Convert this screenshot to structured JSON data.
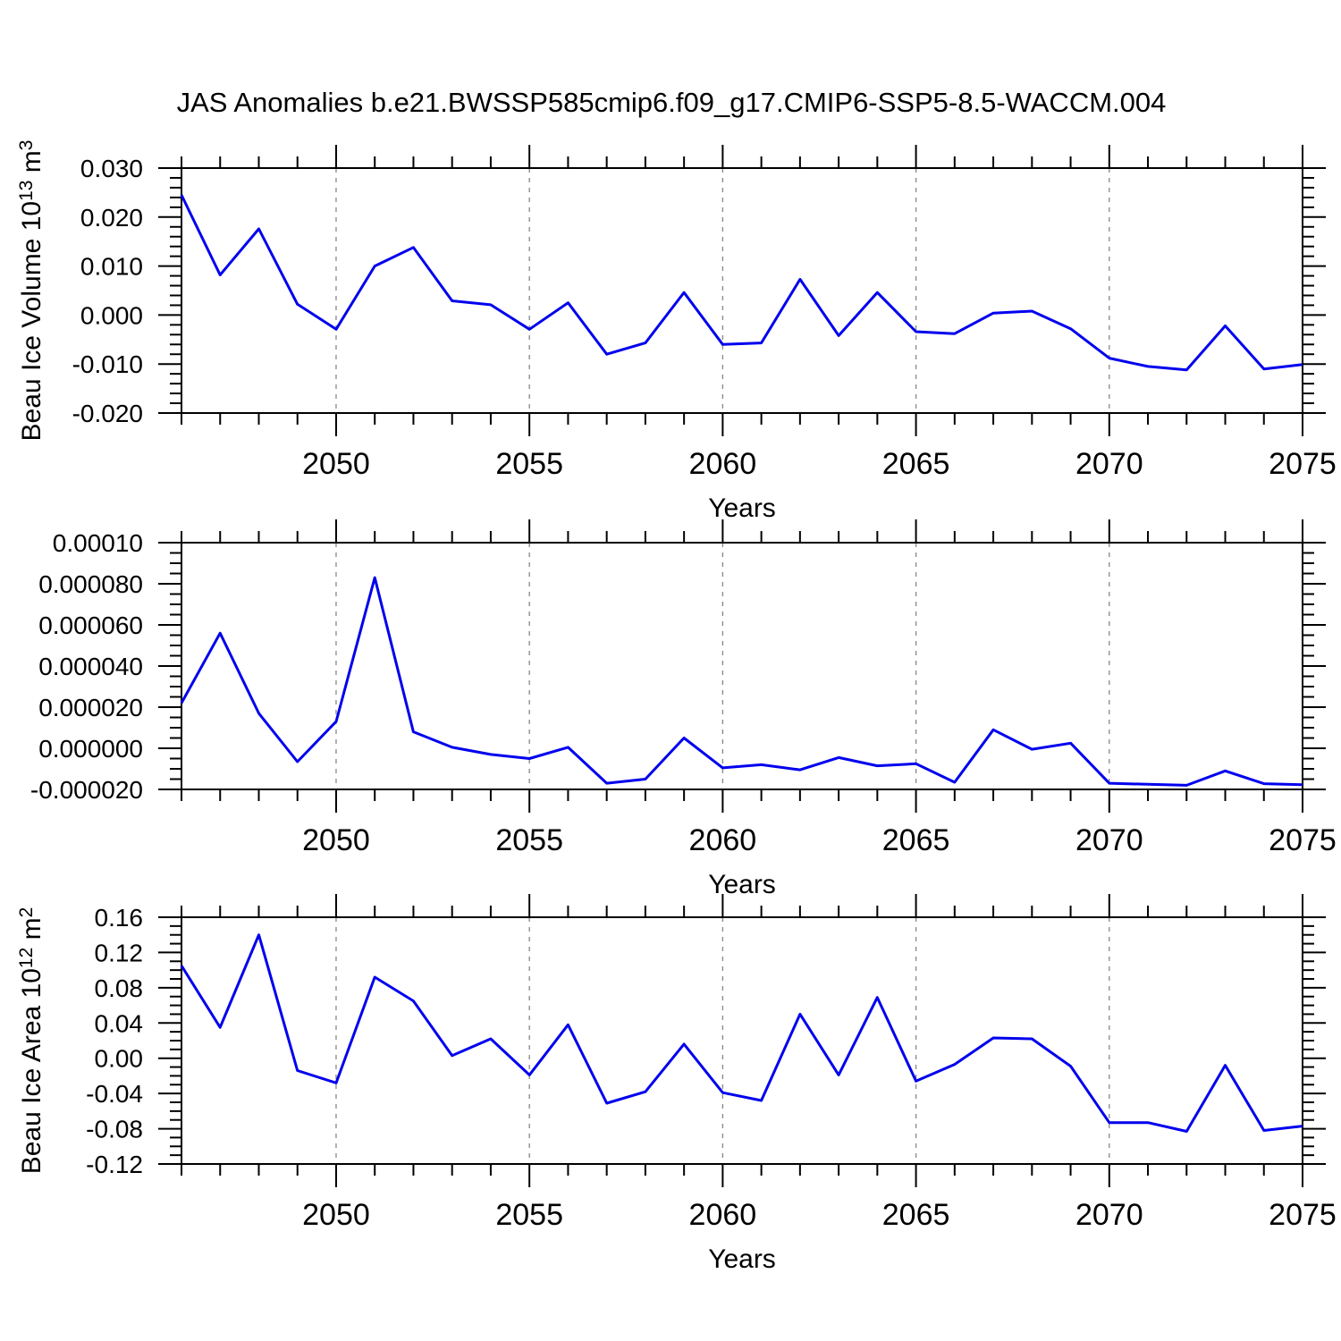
{
  "title": "JAS Anomalies b.e21.BWSSP585cmip6.f09_g17.CMIP6-SSP5-8.5-WACCM.004",
  "colors": {
    "line": "#0000ee",
    "axis": "#000000",
    "grid": "#878787",
    "background": "#ffffff",
    "text": "#000000"
  },
  "x_axis": {
    "label": "Years",
    "years_start": 2046,
    "years_end": 2075,
    "years": [
      2046,
      2047,
      2048,
      2049,
      2050,
      2051,
      2052,
      2053,
      2054,
      2055,
      2056,
      2057,
      2058,
      2059,
      2060,
      2061,
      2062,
      2063,
      2064,
      2065,
      2066,
      2067,
      2068,
      2069,
      2070,
      2071,
      2072,
      2073,
      2074,
      2075
    ],
    "major_ticks": [
      2050,
      2055,
      2060,
      2065,
      2070,
      2075
    ],
    "tick_labels": [
      "2050",
      "2055",
      "2060",
      "2065",
      "2070",
      "2075"
    ],
    "gridlines": [
      2050,
      2055,
      2060,
      2065,
      2070
    ]
  },
  "chart_data": [
    {
      "type": "line",
      "name": "beau-ice-volume",
      "ylabel_text": "Beau Ice Volume 10^13 m^3",
      "ylabel_parts": [
        {
          "t": "Beau Ice Volume 10"
        },
        {
          "t": "13",
          "sup": true
        },
        {
          "t": " m"
        },
        {
          "t": "3",
          "sup": true
        }
      ],
      "xlabel": "Years",
      "ylim": [
        -0.02,
        0.03
      ],
      "yticks": [
        0.03,
        0.02,
        0.01,
        0.0,
        -0.01,
        -0.02
      ],
      "ytick_labels": [
        "0.030",
        "0.020",
        "0.010",
        "0.000",
        "-0.010",
        "-0.020"
      ],
      "yminor_step": 0.002,
      "x_range": [
        2046,
        2075
      ],
      "values": [
        0.0245,
        0.0082,
        0.0176,
        0.0022,
        -0.0029,
        0.01,
        0.0138,
        0.0029,
        0.0021,
        -0.0029,
        0.0025,
        -0.008,
        -0.0057,
        0.0046,
        -0.006,
        -0.0057,
        0.0073,
        -0.0042,
        0.0046,
        -0.0034,
        -0.0038,
        0.0004,
        0.0008,
        -0.0028,
        -0.0088,
        -0.0105,
        -0.0112,
        -0.0022,
        -0.011,
        -0.0101
      ]
    },
    {
      "type": "line",
      "name": "middle-series",
      "ylabel_text": "",
      "ylabel_parts": [],
      "xlabel": "Years",
      "ylim": [
        -2e-05,
        0.0001
      ],
      "yticks": [
        0.0001,
        8e-05,
        6e-05,
        4e-05,
        2e-05,
        0.0,
        -2e-05
      ],
      "ytick_labels": [
        "0.00010",
        "0.000080",
        "0.000060",
        "0.000040",
        "0.000020",
        "0.000000",
        "-0.000020"
      ],
      "yminor_step": 5e-06,
      "x_range": [
        2046,
        2075
      ],
      "values": [
        2.2e-05,
        5.6e-05,
        1.7e-05,
        -6.5e-06,
        1.3e-05,
        8.3e-05,
        8e-06,
        5e-07,
        -3e-06,
        -5e-06,
        5e-07,
        -1.7e-05,
        -1.5e-05,
        5e-06,
        -9.5e-06,
        -8e-06,
        -1.05e-05,
        -4.5e-06,
        -8.5e-06,
        -7.5e-06,
        -1.65e-05,
        9e-06,
        -5e-07,
        2.5e-06,
        -1.7e-05,
        -1.75e-05,
        -1.8e-05,
        -1.1e-05,
        -1.72e-05,
        -1.77e-05
      ]
    },
    {
      "type": "line",
      "name": "beau-ice-area",
      "ylabel_text": "Beau Ice Area 10^12 m^2",
      "ylabel_parts": [
        {
          "t": "Beau Ice Area 10"
        },
        {
          "t": "12",
          "sup": true
        },
        {
          "t": " m"
        },
        {
          "t": "2",
          "sup": true
        }
      ],
      "xlabel": "Years",
      "ylim": [
        -0.12,
        0.16
      ],
      "yticks": [
        0.16,
        0.12,
        0.08,
        0.04,
        0.0,
        -0.04,
        -0.08,
        -0.12
      ],
      "ytick_labels": [
        "0.16",
        "0.12",
        "0.08",
        "0.04",
        "0.00",
        "-0.04",
        "-0.08",
        "-0.12"
      ],
      "yminor_step": 0.01,
      "x_range": [
        2046,
        2075
      ],
      "values": [
        0.105,
        0.035,
        0.14,
        -0.014,
        -0.028,
        0.092,
        0.065,
        0.003,
        0.022,
        -0.019,
        0.038,
        -0.051,
        -0.038,
        0.016,
        -0.039,
        -0.048,
        0.05,
        -0.019,
        0.069,
        -0.026,
        -0.007,
        0.023,
        0.022,
        -0.009,
        -0.073,
        -0.073,
        -0.083,
        -0.008,
        -0.082,
        -0.077
      ]
    }
  ]
}
